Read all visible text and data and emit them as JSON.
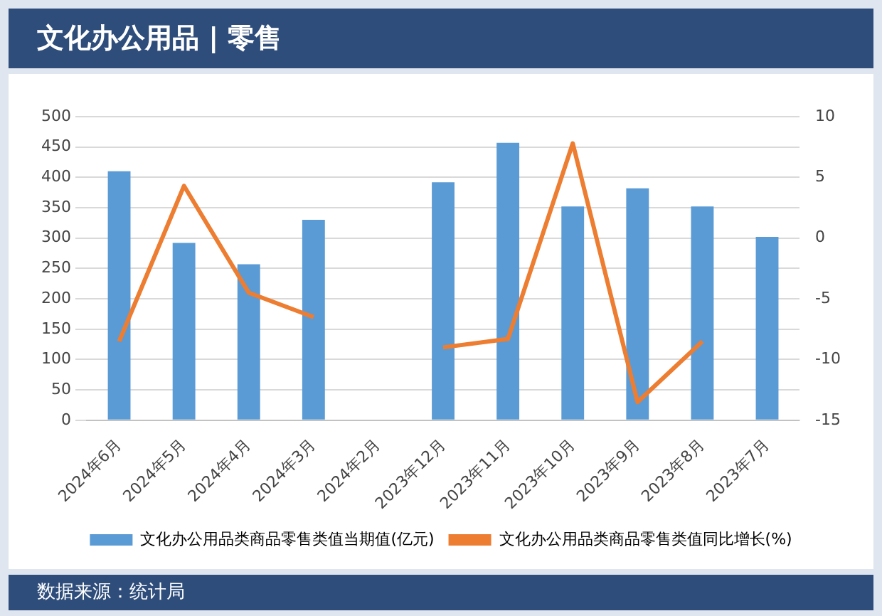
{
  "chart_data": {
    "type": "bar",
    "title": "文化办公用品 | 零售",
    "categories": [
      "2024年6月",
      "2024年5月",
      "2024年4月",
      "2024年3月",
      "2024年2月",
      "2023年12月",
      "2023年11月",
      "2023年10月",
      "2023年9月",
      "2023年8月",
      "2023年7月"
    ],
    "series": [
      {
        "name": "文化办公用品类商品零售类值当期值(亿元)",
        "color": "#5b9bd5",
        "values": [
          410,
          292,
          257,
          330,
          null,
          392,
          457,
          352,
          382,
          352,
          302
        ]
      },
      {
        "name": "文化办公用品类商品零售类值同比增长(%)",
        "color": "#ed7d31",
        "type": "line",
        "axis": "y2",
        "values": [
          -8.5,
          4.3,
          -4.5,
          -6.5,
          null,
          -9,
          -8.3,
          7.8,
          -13.5,
          -8.5,
          null
        ]
      }
    ],
    "ylim": [
      0,
      500
    ],
    "yticks": [
      0,
      50,
      100,
      150,
      200,
      250,
      300,
      350,
      400,
      450,
      500
    ],
    "y2lim": [
      -15,
      10
    ],
    "y2ticks": [
      -15,
      -10,
      -5,
      0,
      5,
      10
    ],
    "grid": "y",
    "legend": "bottom",
    "marker": "none",
    "annotations": [
      "数据来源：统计局"
    ]
  }
}
